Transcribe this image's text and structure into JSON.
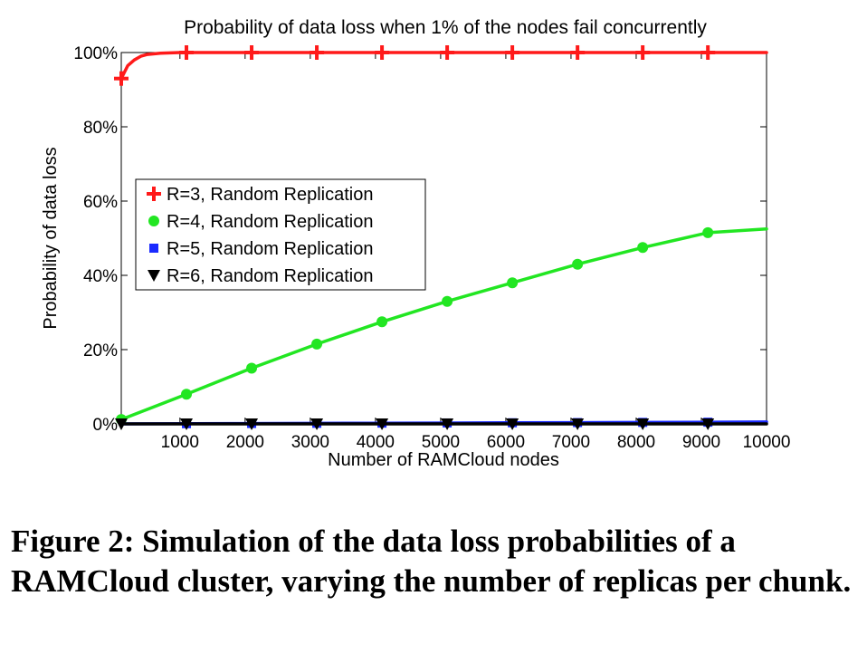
{
  "figure": {
    "caption": "Figure 2: Simulation of the data loss probabilities of a RAMCloud cluster, varying the number of replicas per chunk."
  },
  "chart_data": {
    "type": "line",
    "title": "Probability of data loss when 1% of the nodes fail concurrently",
    "xlabel": "Number of RAMCloud nodes",
    "ylabel": "Probability of data loss",
    "xlim": [
      100,
      10000
    ],
    "ylim": [
      0,
      100
    ],
    "xticks": [
      1000,
      2000,
      3000,
      4000,
      5000,
      6000,
      7000,
      8000,
      9000,
      10000
    ],
    "xtick_labels": [
      "1000",
      "2000",
      "3000",
      "4000",
      "5000",
      "6000",
      "7000",
      "8000",
      "9000",
      "10000"
    ],
    "yticks": [
      0,
      20,
      40,
      60,
      80,
      100
    ],
    "ytick_labels": [
      "0%",
      "20%",
      "40%",
      "60%",
      "80%",
      "100%"
    ],
    "grid": false,
    "legend_position": "center-left",
    "series": [
      {
        "name": "R=3, Random Replication",
        "color": "#ff1a1a",
        "marker": "plus",
        "x": [
          100,
          200,
          300,
          400,
          500,
          700,
          1000,
          1500,
          2000,
          3000,
          4000,
          5000,
          6000,
          7000,
          8000,
          9000,
          10000
        ],
        "y": [
          93,
          96.5,
          98,
          99,
          99.5,
          99.8,
          100,
          100,
          100,
          100,
          100,
          100,
          100,
          100,
          100,
          100,
          100
        ],
        "marker_x": [
          100,
          1100,
          2100,
          3100,
          4100,
          5100,
          6100,
          7100,
          8100,
          9100
        ]
      },
      {
        "name": "R=4, Random Replication",
        "color": "#22e622",
        "marker": "circle",
        "x": [
          100,
          1100,
          2100,
          3100,
          4100,
          5100,
          6100,
          7100,
          8100,
          9100,
          10000
        ],
        "y": [
          1.2,
          8,
          15,
          21.5,
          27.5,
          33,
          38,
          43,
          47.5,
          51.5,
          52.5
        ],
        "marker_x": [
          100,
          1100,
          2100,
          3100,
          4100,
          5100,
          6100,
          7100,
          8100,
          9100
        ]
      },
      {
        "name": "R=5, Random Replication",
        "color": "#1a2aff",
        "marker": "square",
        "x": [
          100,
          2000,
          4000,
          6000,
          8000,
          10000
        ],
        "y": [
          0,
          0.1,
          0.2,
          0.3,
          0.4,
          0.5
        ],
        "marker_x": [
          1100,
          2100,
          3100,
          4100,
          5100,
          6100,
          7100,
          8100,
          9100
        ]
      },
      {
        "name": "R=6, Random Replication",
        "color": "#000000",
        "marker": "triangle-down",
        "x": [
          100,
          10000
        ],
        "y": [
          0,
          0
        ],
        "marker_x": [
          100,
          1100,
          2100,
          3100,
          4100,
          5100,
          6100,
          7100,
          8100,
          9100
        ]
      }
    ]
  }
}
